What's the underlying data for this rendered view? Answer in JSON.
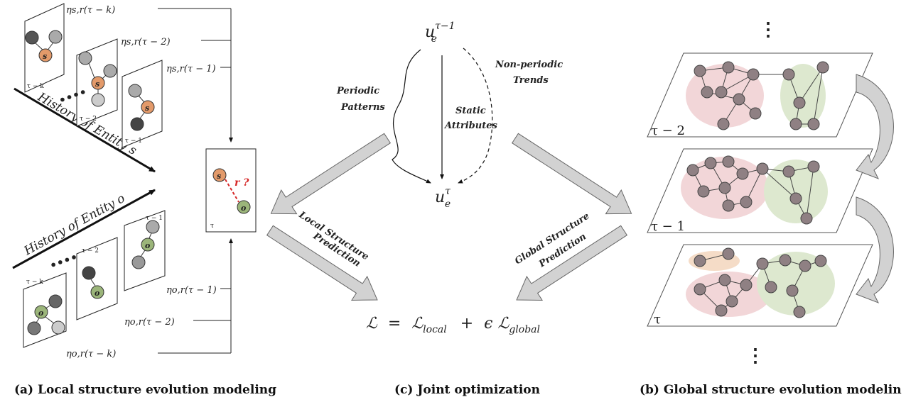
{
  "captions": {
    "a": "(a) Local structure evolution modeling",
    "c": "(c)  Joint  optimization",
    "b": "(b) Global structure evolution modelin"
  },
  "local": {
    "history_s": "History of Entity s",
    "history_o": "History of Entity o",
    "ellipsis": "••••",
    "frames_s": [
      "τ − k",
      "τ − 2",
      "τ − 1"
    ],
    "frames_o": [
      "τ − k",
      "τ − 2",
      "τ − 1"
    ],
    "eta_s": [
      "ηs,r(τ − k)",
      "ηs,r(τ − 2)",
      "ηs,r(τ − 1)"
    ],
    "eta_o": [
      "ηo,r(τ − 1)",
      "ηo,r(τ − 2)",
      "ηo,r(τ − k)"
    ],
    "node_s": "s",
    "node_o": "o",
    "query_rel": "r ?",
    "target_frame": "τ",
    "local_pred": [
      "Local Structure",
      "Prediction"
    ]
  },
  "joint": {
    "u_top": "uₑ^{τ−1}",
    "u_top_base": "u",
    "u_top_sub": "e",
    "u_top_sup": "τ−1",
    "u_bot_base": "u",
    "u_bot_sub": "e",
    "u_bot_sup": "τ",
    "periodic": [
      "Periodic",
      "Patterns"
    ],
    "static": [
      "Static",
      "Attributes"
    ],
    "nonperiodic": [
      "Non-periodic",
      "Trends"
    ],
    "loss": "ℒ  =  ℒlocal  +  ϵ ℒglobal",
    "loss_parts": [
      "ℒ",
      "=",
      "ℒ",
      "local",
      "+",
      "ϵ ℒ",
      "global"
    ]
  },
  "global": {
    "planes": [
      "τ − 2",
      "τ − 1",
      "τ"
    ],
    "global_pred": [
      "Global Structure",
      "Prediction"
    ],
    "dots": "⋮"
  },
  "colors": {
    "orange_node": "#e39a6a",
    "green_node": "#9bb57a",
    "gray_node": "#8f8083",
    "pink_blob": "#f2d6d8",
    "green_blob": "#dde8cf",
    "orange_blob": "#f5dcc7",
    "arrow_fill": "#d2d2d2",
    "red_query": "#d62828"
  }
}
